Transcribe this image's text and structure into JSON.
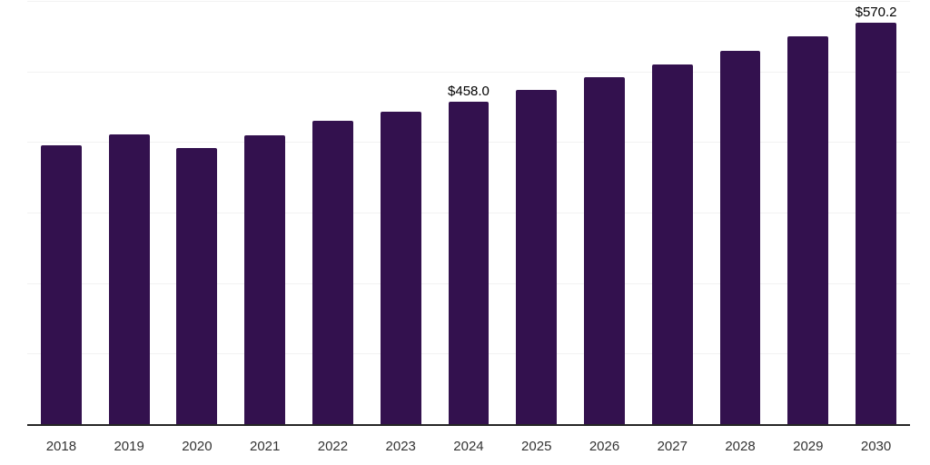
{
  "chart_data": {
    "type": "bar",
    "title": "",
    "xlabel": "",
    "ylabel": "",
    "categories": [
      "2018",
      "2019",
      "2020",
      "2021",
      "2022",
      "2023",
      "2024",
      "2025",
      "2026",
      "2027",
      "2028",
      "2029",
      "2030"
    ],
    "values": [
      396.9,
      411.9,
      392.6,
      410.6,
      431.1,
      444.0,
      458.0,
      475.0,
      493.0,
      511.0,
      530.3,
      551.0,
      570.2
    ],
    "bar_labels": {
      "2024": "$458.0",
      "2030": "$570.2"
    },
    "ylim": [
      0,
      600
    ],
    "gridline_step": 100,
    "grid": true,
    "legend": "none",
    "colors": {
      "bar": "#33114e",
      "gridline": "#f2f2f2",
      "axis_line": "#262626",
      "tick_label": "#333333",
      "data_label": "#000000"
    }
  }
}
